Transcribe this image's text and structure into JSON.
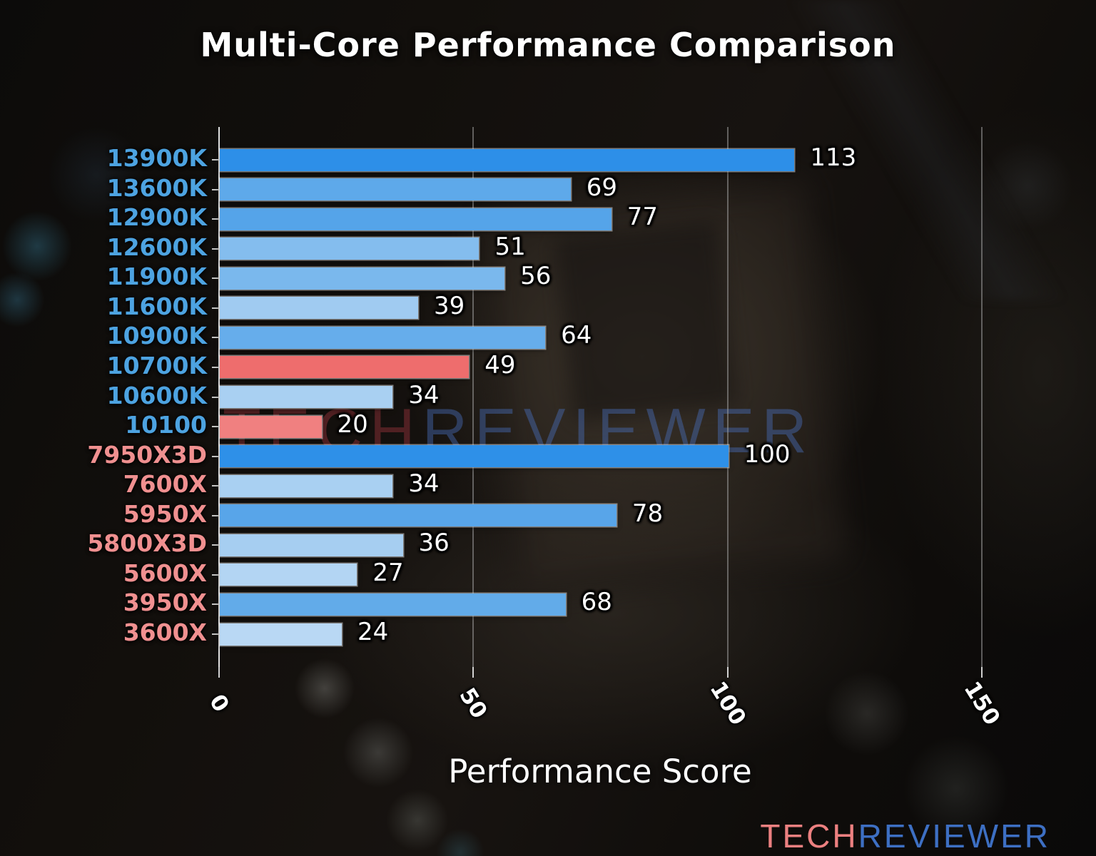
{
  "header": {
    "title": "Multi-Core Performance Comparison"
  },
  "watermark": {
    "tech": "TECH",
    "reviewer": "REVIEWER"
  },
  "footer_logo": {
    "tech": "TECH",
    "reviewer": "REVIEWER"
  },
  "chart_data": {
    "type": "bar",
    "orientation": "horizontal",
    "title": "Multi-Core Performance Comparison",
    "xlabel": "Performance Score",
    "xlim": [
      0,
      150
    ],
    "xticks": [
      0,
      50,
      100,
      150
    ],
    "grid": true,
    "legend": null,
    "categories": [
      "13900K",
      "13600K",
      "12900K",
      "12600K",
      "11900K",
      "11600K",
      "10900K",
      "10700K",
      "10600K",
      "10100",
      "7950X3D",
      "7600X",
      "5950X",
      "5800X3D",
      "5600X",
      "3950X",
      "3600X"
    ],
    "values": [
      113,
      69,
      77,
      51,
      56,
      39,
      64,
      49,
      34,
      20,
      100,
      34,
      78,
      36,
      27,
      68,
      24
    ],
    "bar_colors": [
      "#2d8fe8",
      "#5ea9ea",
      "#55a4e9",
      "#84bdee",
      "#7ab8ed",
      "#a0cbf1",
      "#66adeb",
      "#ee6d6d",
      "#a9d0f2",
      "#f08080",
      "#2e90e8",
      "#a9d0f2",
      "#58a5e9",
      "#a6cef1",
      "#b3d5f3",
      "#62abe9",
      "#b9d8f4"
    ],
    "label_colors": [
      "#4da3e1",
      "#4da3e1",
      "#4da3e1",
      "#4da3e1",
      "#4da3e1",
      "#4da3e1",
      "#4da3e1",
      "#4da3e1",
      "#4da3e1",
      "#4da3e1",
      "#f09090",
      "#f09090",
      "#f09090",
      "#f09090",
      "#f09090",
      "#f09090",
      "#f09090"
    ],
    "value_label_color": "#ffffff"
  },
  "colors": {
    "intel_label": "#4da3e1",
    "amd_label": "#f09090",
    "highlight_red": "#ee6d6d",
    "grid": "#a0a0a0",
    "logo_tech": "#ec8080",
    "logo_reviewer": "#3d6fc3",
    "watermark_tech": "rgba(165,55,65,0.42)",
    "watermark_reviewer": "rgba(75,115,195,0.42)"
  }
}
